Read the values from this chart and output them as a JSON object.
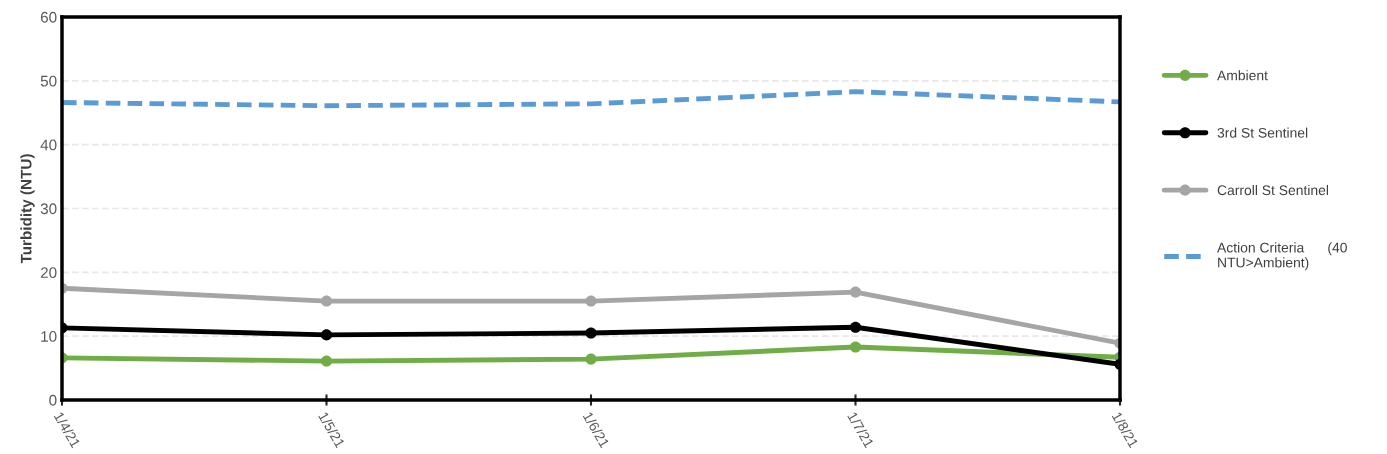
{
  "chart_data": {
    "type": "line",
    "ylabel": "Turbidity (NTU)",
    "categories": [
      "1/4/21",
      "1/5/21",
      "1/6/21",
      "1/7/21",
      "1/8/21"
    ],
    "series": [
      {
        "name": "Ambient",
        "color": "#70ad47",
        "values": [
          6.6,
          6.1,
          6.4,
          8.3,
          6.7
        ],
        "marker": "circle",
        "line_style": "solid"
      },
      {
        "name": "3rd St Sentinel",
        "color": "#000000",
        "values": [
          11.3,
          10.2,
          10.5,
          11.4,
          5.6
        ],
        "marker": "circle",
        "line_style": "solid"
      },
      {
        "name": "Carroll St Sentinel",
        "color": "#a5a5a5",
        "values": [
          17.5,
          15.5,
          15.5,
          16.9,
          8.9
        ],
        "marker": "circle",
        "line_style": "solid"
      },
      {
        "name": "Action Criteria      (40\nNTU>Ambient)",
        "color": "#5b9bd5",
        "values": [
          46.6,
          46.1,
          46.4,
          48.3,
          46.7
        ],
        "marker": "none",
        "line_style": "dashed"
      }
    ],
    "ylim": [
      0,
      60
    ],
    "yticks": [
      0,
      10,
      20,
      30,
      40,
      50,
      60
    ],
    "grid": "y",
    "legend": "right"
  }
}
